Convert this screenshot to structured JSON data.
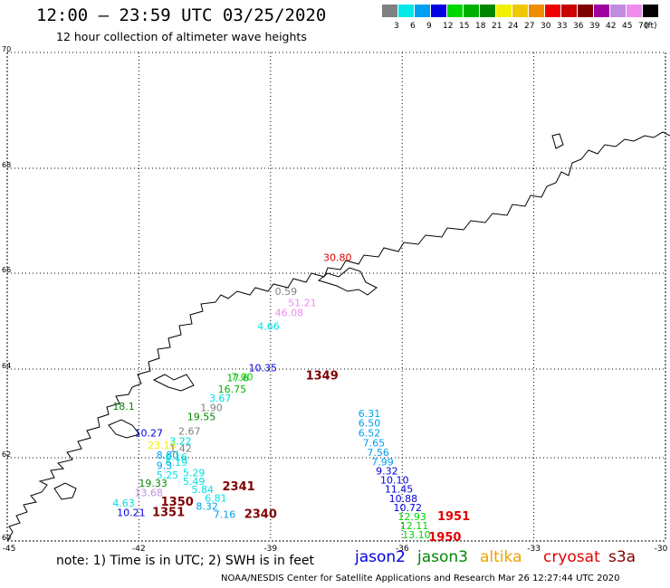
{
  "title": "12:00 – 23:59 UTC 03/25/2020",
  "subtitle": "12 hour collection of altimeter wave heights",
  "legend": {
    "unit": "(ft)",
    "items": [
      {
        "label": "3",
        "color": "#808080"
      },
      {
        "label": "6",
        "color": "#00e8e8"
      },
      {
        "label": "9",
        "color": "#00a0f0"
      },
      {
        "label": "12",
        "color": "#0000e0"
      },
      {
        "label": "15",
        "color": "#00d800"
      },
      {
        "label": "18",
        "color": "#00b000"
      },
      {
        "label": "21",
        "color": "#008800"
      },
      {
        "label": "24",
        "color": "#f0f000"
      },
      {
        "label": "27",
        "color": "#f0c800"
      },
      {
        "label": "30",
        "color": "#f08c00"
      },
      {
        "label": "33",
        "color": "#f00000"
      },
      {
        "label": "36",
        "color": "#c80000"
      },
      {
        "label": "39",
        "color": "#800000"
      },
      {
        "label": "42",
        "color": "#a000a0"
      },
      {
        "label": "45",
        "color": "#c08ce0"
      },
      {
        "label": "70",
        "color": "#f08cf0"
      },
      {
        "label": "",
        "color": "#000000"
      }
    ]
  },
  "axes": {
    "lat_ticks": [
      "70",
      "68",
      "66",
      "64",
      "62",
      "60"
    ],
    "lon_ticks": [
      "-45",
      "-42",
      "-39",
      "-36",
      "-33",
      "-30"
    ],
    "grid": "dotted"
  },
  "observations": [
    {
      "text": "30.80",
      "lon": -37.8,
      "lat": 66.23,
      "color": "#e00000"
    },
    {
      "text": "0.59",
      "lon": -38.9,
      "lat": 65.55,
      "color": "#808080"
    },
    {
      "text": "51.21",
      "lon": -38.6,
      "lat": 65.31,
      "color": "#f08cf0"
    },
    {
      "text": "46.08",
      "lon": -38.9,
      "lat": 65.1,
      "color": "#f08cf0"
    },
    {
      "text": "4.66",
      "lon": -39.3,
      "lat": 64.82,
      "color": "#00e0e0"
    },
    {
      "text": "10.35",
      "lon": -39.5,
      "lat": 63.95,
      "color": "#0000e0"
    },
    {
      "text": "7.00",
      "lon": -39.9,
      "lat": 63.75,
      "color": "#00d800"
    },
    {
      "text": "17.6",
      "lon": -40.0,
      "lat": 63.72,
      "color": "#00b000"
    },
    {
      "text": "1349",
      "lon": -38.2,
      "lat": 63.77,
      "color": "#800000"
    },
    {
      "text": "16.75",
      "lon": -40.2,
      "lat": 63.47,
      "color": "#00b000"
    },
    {
      "text": "3.67",
      "lon": -40.4,
      "lat": 63.27,
      "color": "#00e0e0"
    },
    {
      "text": "1.90",
      "lon": -40.6,
      "lat": 63.05,
      "color": "#808080"
    },
    {
      "text": "19.55",
      "lon": -40.9,
      "lat": 62.85,
      "color": "#008800"
    },
    {
      "text": "18.1",
      "lon": -42.6,
      "lat": 63.08,
      "color": "#008800"
    },
    {
      "text": "10.27",
      "lon": -42.1,
      "lat": 62.48,
      "color": "#0000e0"
    },
    {
      "text": "2.67",
      "lon": -41.1,
      "lat": 62.52,
      "color": "#808080"
    },
    {
      "text": "3.22",
      "lon": -41.3,
      "lat": 62.3,
      "color": "#00e0e0"
    },
    {
      "text": "23.16",
      "lon": -41.8,
      "lat": 62.2,
      "color": "#f0f000"
    },
    {
      "text": "1.42",
      "lon": -41.3,
      "lat": 62.13,
      "color": "#808080"
    },
    {
      "text": "8.80",
      "lon": -41.6,
      "lat": 61.98,
      "color": "#00a0f0"
    },
    {
      "text": "6.16",
      "lon": -41.4,
      "lat": 61.93,
      "color": "#00e0e0"
    },
    {
      "text": "6.19",
      "lon": -41.4,
      "lat": 61.8,
      "color": "#00e0e0"
    },
    {
      "text": "9.3",
      "lon": -41.6,
      "lat": 61.73,
      "color": "#00a0f0"
    },
    {
      "text": "5.29",
      "lon": -41.0,
      "lat": 61.55,
      "color": "#00e0e0"
    },
    {
      "text": "5.25",
      "lon": -41.6,
      "lat": 61.5,
      "color": "#00e0e0"
    },
    {
      "text": "5.49",
      "lon": -41.0,
      "lat": 61.35,
      "color": "#00e0e0"
    },
    {
      "text": "19.33",
      "lon": -42.0,
      "lat": 61.3,
      "color": "#008800"
    },
    {
      "text": "5.84",
      "lon": -40.8,
      "lat": 61.15,
      "color": "#00e0e0"
    },
    {
      "text": "2341",
      "lon": -40.1,
      "lat": 61.22,
      "color": "#800000"
    },
    {
      "text": "13.68",
      "lon": -42.1,
      "lat": 61.08,
      "color": "#c08ce0"
    },
    {
      "text": "6.81",
      "lon": -40.5,
      "lat": 60.95,
      "color": "#00e0e0"
    },
    {
      "text": "4.63",
      "lon": -42.6,
      "lat": 60.83,
      "color": "#00e0e0"
    },
    {
      "text": "1350",
      "lon": -41.5,
      "lat": 60.85,
      "color": "#800000"
    },
    {
      "text": "8.32",
      "lon": -40.7,
      "lat": 60.75,
      "color": "#00a0f0"
    },
    {
      "text": "10.21",
      "lon": -42.5,
      "lat": 60.6,
      "color": "#0000e0"
    },
    {
      "text": "1351",
      "lon": -41.7,
      "lat": 60.6,
      "color": "#800000"
    },
    {
      "text": "7.16",
      "lon": -40.3,
      "lat": 60.55,
      "color": "#00a0f0"
    },
    {
      "text": "2340",
      "lon": -39.6,
      "lat": 60.55,
      "color": "#800000"
    },
    {
      "text": "6.31",
      "lon": -37.0,
      "lat": 62.92,
      "color": "#00a0f0"
    },
    {
      "text": "6.50",
      "lon": -37.0,
      "lat": 62.7,
      "color": "#00a0f0"
    },
    {
      "text": "6.52",
      "lon": -37.0,
      "lat": 62.48,
      "color": "#00a0f0"
    },
    {
      "text": "7.65",
      "lon": -36.9,
      "lat": 62.26,
      "color": "#00a0f0"
    },
    {
      "text": "7.56",
      "lon": -36.8,
      "lat": 62.04,
      "color": "#00a0f0"
    },
    {
      "text": "7.99",
      "lon": -36.7,
      "lat": 61.82,
      "color": "#00a0f0"
    },
    {
      "text": "9.32",
      "lon": -36.6,
      "lat": 61.6,
      "color": "#0000e0"
    },
    {
      "text": "10.10",
      "lon": -36.5,
      "lat": 61.38,
      "color": "#0000e0"
    },
    {
      "text": "11.45",
      "lon": -36.4,
      "lat": 61.16,
      "color": "#0000e0"
    },
    {
      "text": "10.88",
      "lon": -36.3,
      "lat": 60.94,
      "color": "#0000e0"
    },
    {
      "text": "10.72",
      "lon": -36.2,
      "lat": 60.72,
      "color": "#0000e0"
    },
    {
      "text": "12.93",
      "lon": -36.1,
      "lat": 60.5,
      "color": "#00d800"
    },
    {
      "text": "1951",
      "lon": -35.2,
      "lat": 60.5,
      "color": "#e00000"
    },
    {
      "text": "12.11",
      "lon": -36.05,
      "lat": 60.28,
      "color": "#00d800"
    },
    {
      "text": "13.10",
      "lon": -36.0,
      "lat": 60.06,
      "color": "#00d800"
    },
    {
      "text": "1950",
      "lon": -35.4,
      "lat": 60.0,
      "color": "#e00000"
    }
  ],
  "footer": {
    "note": "note:  1) Time is in UTC;  2) SWH is in feet",
    "satellites": [
      {
        "name": "jason2",
        "color": "#0000e0"
      },
      {
        "name": "jason3",
        "color": "#008800"
      },
      {
        "name": "altika",
        "color": "#f0a000"
      },
      {
        "name": "cryosat",
        "color": "#e00000"
      },
      {
        "name": "s3a",
        "color": "#800000"
      }
    ],
    "credit": "NOAA/NESDIS Center for Satellite Applications and Research    Mar 26 12:27:44 UTC 2020"
  }
}
